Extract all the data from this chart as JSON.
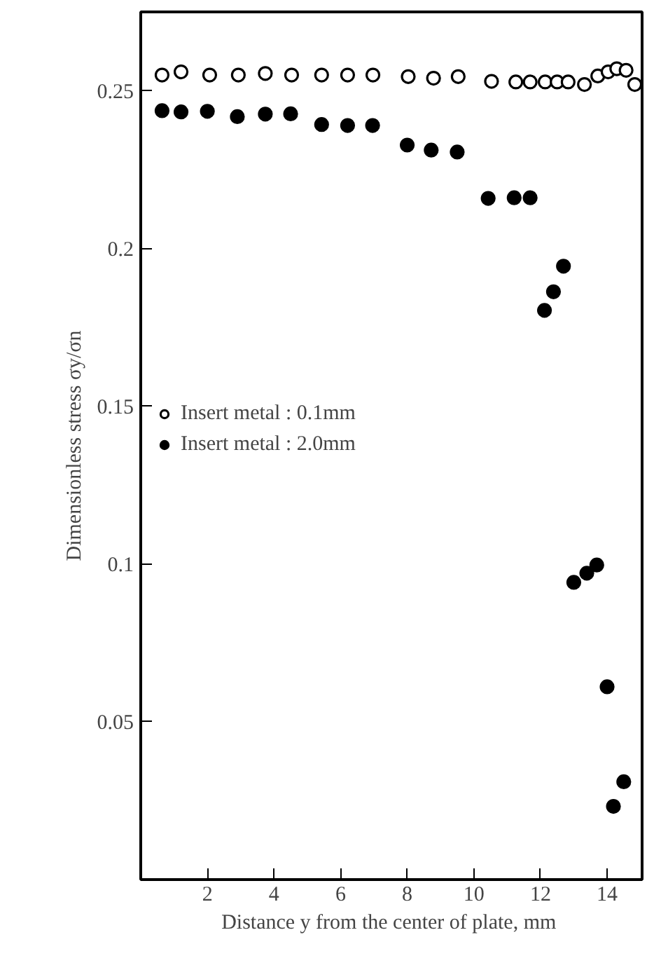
{
  "chart_data": {
    "type": "scatter",
    "xlabel": "Distance y from the center of plate,  mm",
    "ylabel": "Dimensionless stress σy/σn",
    "xlim": [
      0,
      15.05
    ],
    "ylim": [
      0,
      0.275
    ],
    "xticks": [
      2,
      4,
      6,
      8,
      10,
      12,
      14
    ],
    "yticks": [
      0.05,
      0.1,
      0.15,
      0.2,
      0.25
    ],
    "grid": false,
    "legend": "left",
    "marker": "circle",
    "series": [
      {
        "name": "Insert metal : 0.1mm",
        "color": "#ffffff",
        "x": [
          0.64,
          1.21,
          2.07,
          2.93,
          3.74,
          4.53,
          5.43,
          6.21,
          6.97,
          8.03,
          8.79,
          9.53,
          10.53,
          11.26,
          11.69,
          12.14,
          12.5,
          12.83,
          13.32,
          13.72,
          14.03,
          14.29,
          14.57,
          14.83
        ],
        "values": [
          0.255,
          0.256,
          0.255,
          0.255,
          0.2555,
          0.255,
          0.255,
          0.255,
          0.255,
          0.2545,
          0.254,
          0.2545,
          0.253,
          0.2528,
          0.2528,
          0.2528,
          0.2528,
          0.2528,
          0.252,
          0.2547,
          0.256,
          0.257,
          0.2565,
          0.252
        ]
      },
      {
        "name": "Insert metal : 2.0mm",
        "color": "#000000",
        "x": [
          0.64,
          1.21,
          2.0,
          2.9,
          3.74,
          4.5,
          5.43,
          6.21,
          6.96,
          8.0,
          8.72,
          9.5,
          10.43,
          11.21,
          11.69,
          12.12,
          12.39,
          12.69,
          13.0,
          13.39,
          13.69,
          14.0,
          14.19,
          14.5
        ],
        "values": [
          0.2437,
          0.2433,
          0.2435,
          0.2418,
          0.2426,
          0.2427,
          0.2393,
          0.239,
          0.239,
          0.2328,
          0.2312,
          0.2306,
          0.2159,
          0.2161,
          0.2161,
          0.1804,
          0.1863,
          0.1944,
          0.0942,
          0.0971,
          0.0997,
          0.0611,
          0.0232,
          0.031
        ]
      }
    ]
  }
}
